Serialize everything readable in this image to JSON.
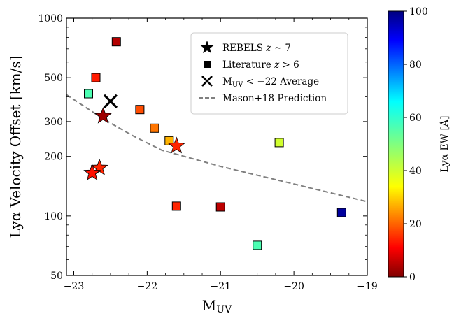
{
  "chart_data": {
    "type": "scatter",
    "xlabel": "M",
    "xlabel_sub": "UV",
    "ylabel": "Lyα Velocity Offset [km/s]",
    "xlim": [
      -23.1,
      -19.0
    ],
    "ylim": [
      50,
      1000
    ],
    "yscale": "log",
    "x_ticks": [
      {
        "value": -23,
        "label": "−23"
      },
      {
        "value": -22,
        "label": "−22"
      },
      {
        "value": -21,
        "label": "−21"
      },
      {
        "value": -20,
        "label": "−20"
      },
      {
        "value": -19,
        "label": "−19"
      }
    ],
    "y_ticks": [
      {
        "value": 50,
        "label": "50"
      },
      {
        "value": 100,
        "label": "100"
      },
      {
        "value": 200,
        "label": "200"
      },
      {
        "value": 300,
        "label": "300"
      },
      {
        "value": 500,
        "label": "500"
      },
      {
        "value": 1000,
        "label": "1000"
      }
    ],
    "colorbar": {
      "label": "Lyα EW [Å]",
      "range": [
        0,
        100
      ],
      "ticks": [
        "0",
        "20",
        "40",
        "60",
        "80",
        "100"
      ],
      "colormap": "jet_r"
    },
    "legend": {
      "position": "top-right",
      "entries": [
        {
          "marker": "star",
          "text": "REBELS ",
          "italic": "z",
          "suffix": " ~ 7"
        },
        {
          "marker": "square",
          "text": "Literature ",
          "italic": "z",
          "suffix": " > 6"
        },
        {
          "marker": "x",
          "text": "M",
          "sub": "UV",
          "suffix": " < −22 Average"
        },
        {
          "marker": "dashed-line",
          "text": "Mason+18 Prediction"
        }
      ]
    },
    "series": [
      {
        "name": "REBELS z ~ 7",
        "marker": "star",
        "points": [
          {
            "x": -22.6,
            "y": 320,
            "ew": 3
          },
          {
            "x": -21.6,
            "y": 226,
            "ew": 16
          },
          {
            "x": -22.65,
            "y": 175,
            "ew": 16
          },
          {
            "x": -22.75,
            "y": 165,
            "ew": 14
          }
        ]
      },
      {
        "name": "Literature z > 6",
        "marker": "square",
        "points": [
          {
            "x": -22.42,
            "y": 760,
            "ew": 5
          },
          {
            "x": -22.7,
            "y": 500,
            "ew": 15
          },
          {
            "x": -22.8,
            "y": 415,
            "ew": 55
          },
          {
            "x": -22.1,
            "y": 345,
            "ew": 20
          },
          {
            "x": -21.9,
            "y": 278,
            "ew": 24
          },
          {
            "x": -21.7,
            "y": 240,
            "ew": 30
          },
          {
            "x": -20.2,
            "y": 235,
            "ew": 42
          },
          {
            "x": -21.6,
            "y": 112,
            "ew": 16
          },
          {
            "x": -21.0,
            "y": 111,
            "ew": 6
          },
          {
            "x": -20.5,
            "y": 71,
            "ew": 55
          },
          {
            "x": -19.35,
            "y": 104,
            "ew": 97
          }
        ]
      },
      {
        "name": "M_UV < −22 Average",
        "marker": "x",
        "points": [
          {
            "x": -22.5,
            "y": 380
          }
        ]
      },
      {
        "name": "Mason+18 Prediction",
        "marker": "dashed-line",
        "x": [
          -23.1,
          -22.6,
          -22.2,
          -21.8,
          -21.0,
          -20.0,
          -19.0
        ],
        "y": [
          410,
          310,
          255,
          215,
          178,
          145,
          118
        ]
      }
    ]
  }
}
